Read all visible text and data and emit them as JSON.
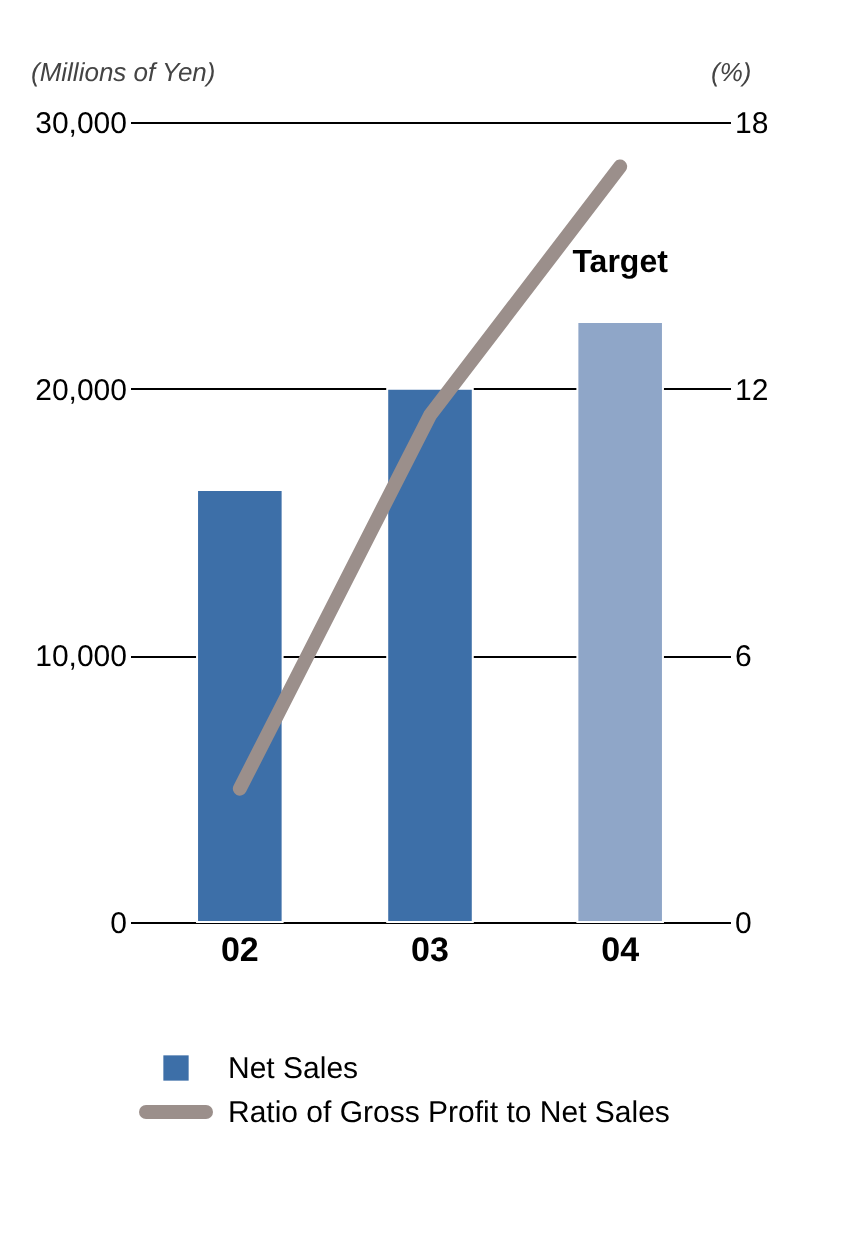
{
  "chart_data": {
    "type": "bar",
    "categories": [
      "02",
      "03",
      "04"
    ],
    "ylabel": "(Millions of Yen)",
    "y2label": "(%)",
    "ylim": [
      0,
      30000
    ],
    "yticks": [
      {
        "value": 0,
        "label": "0"
      },
      {
        "value": 10000,
        "label": "10,000"
      },
      {
        "value": 20000,
        "label": "20,000"
      },
      {
        "value": 30000,
        "label": "30,000"
      }
    ],
    "y2lim": [
      0,
      18
    ],
    "y2ticks": [
      0,
      6,
      12,
      18
    ],
    "grid": "y",
    "legend": "bottom",
    "annotations": [
      {
        "text": "Target",
        "x": "04",
        "y": 22500
      }
    ],
    "series": [
      {
        "name": "Net Sales",
        "color": "#3d6fa8",
        "colors": [
          "#3d6fa8",
          "#3d6fa8",
          "#8fa6c8"
        ],
        "values": [
          16200,
          20000,
          22500
        ]
      },
      {
        "name": "Ratio of Gross Profit to Net Sales",
        "type": "line",
        "axis": "y2",
        "color": "#9b8f8b",
        "values": [
          3.0,
          11.4,
          17.0
        ]
      }
    ]
  }
}
